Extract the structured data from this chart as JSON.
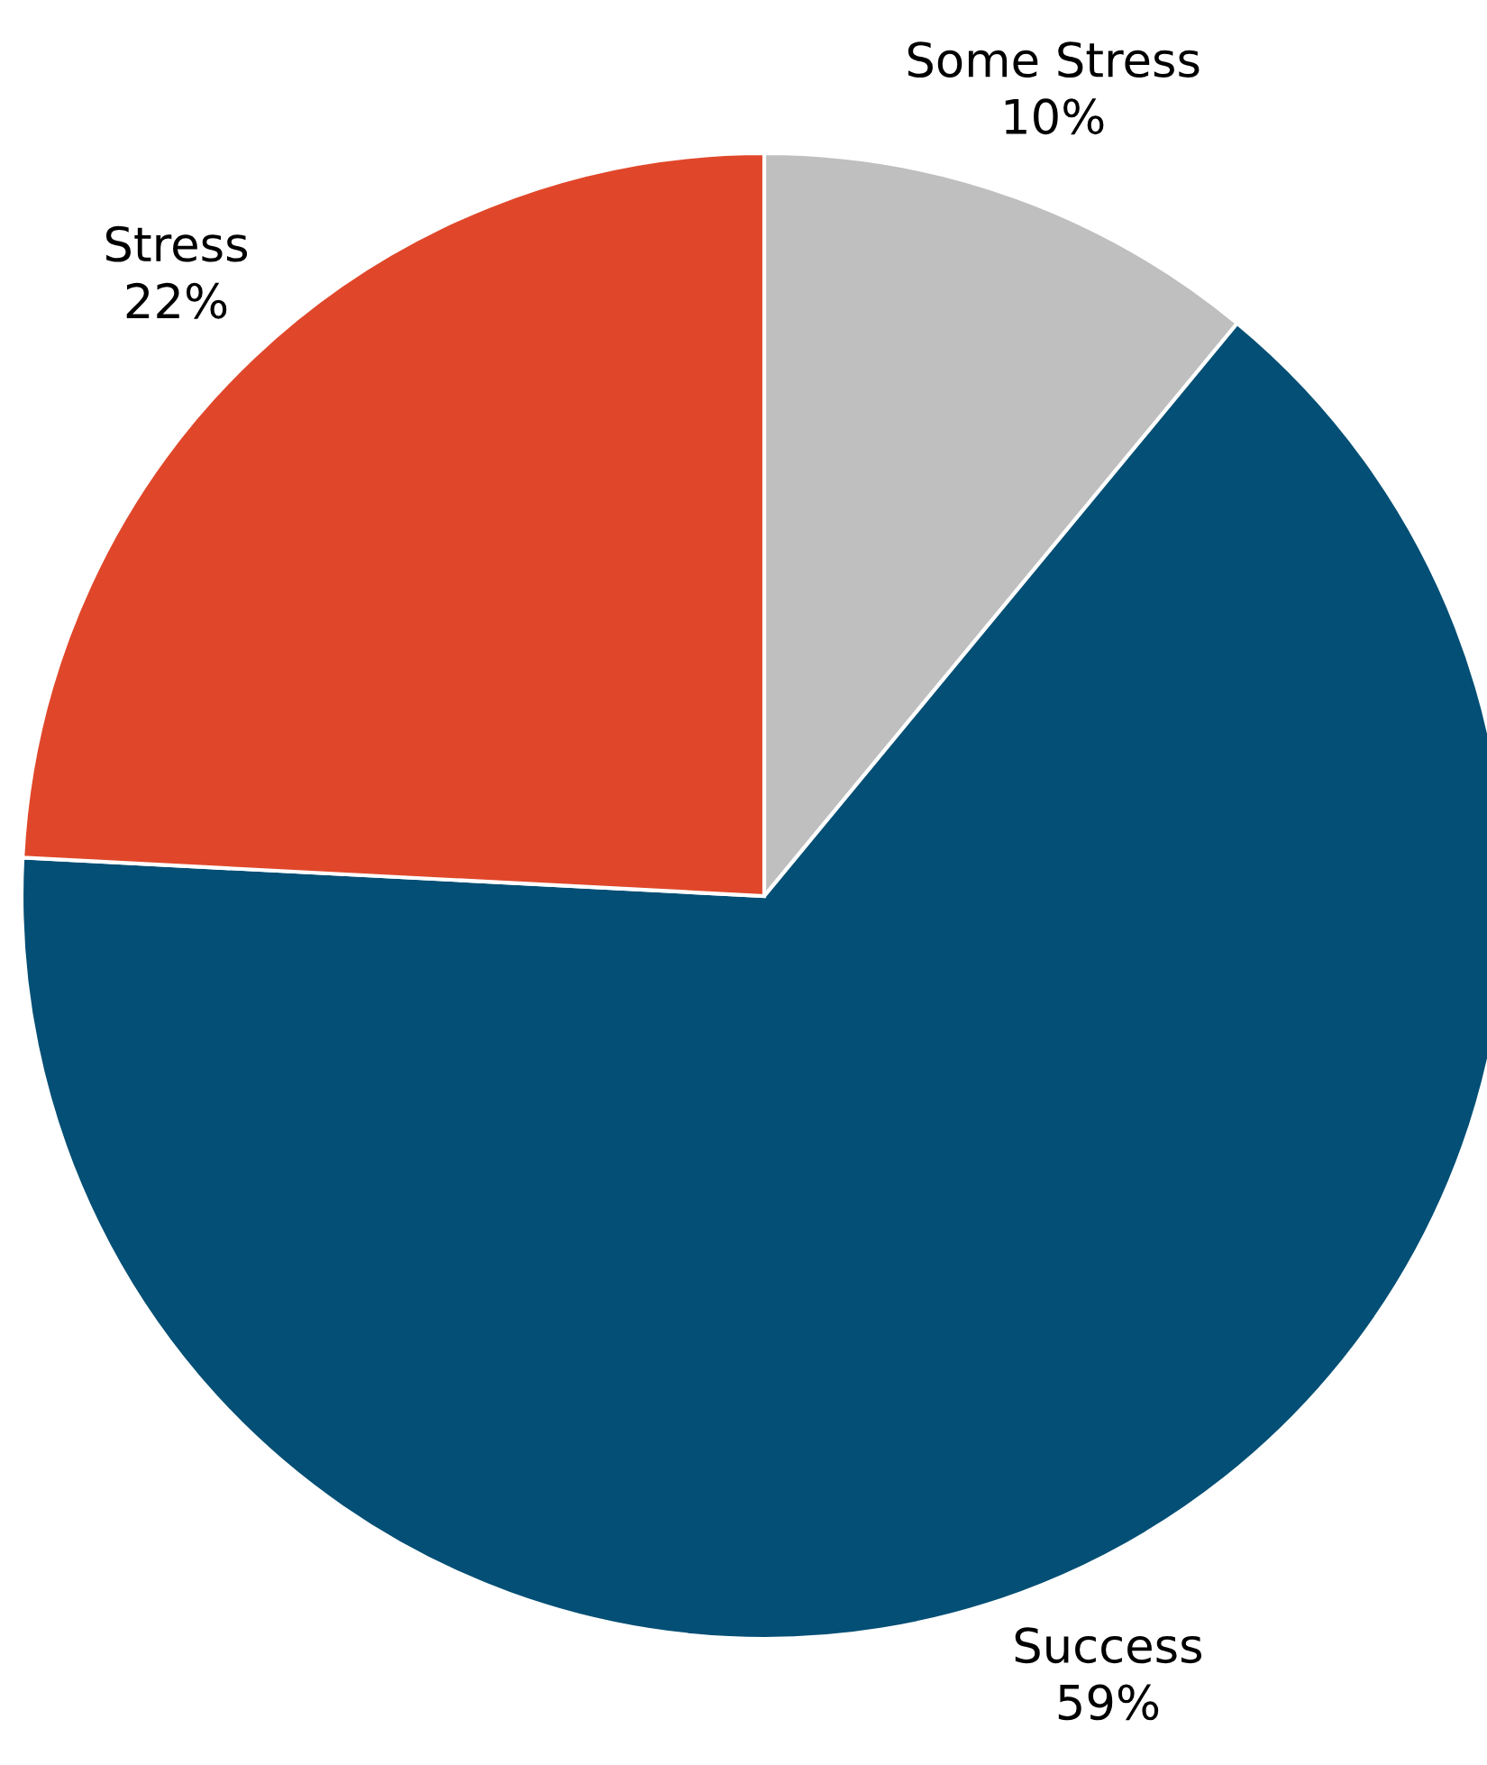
{
  "chart_data": {
    "type": "pie",
    "categories": [
      "Some Stress",
      "Success",
      "Stress"
    ],
    "values": [
      10,
      59,
      22
    ],
    "value_labels": [
      "10%",
      "59%",
      "22%"
    ],
    "colors": [
      "#bfbfbf",
      "#034f75",
      "#e0472a"
    ]
  }
}
